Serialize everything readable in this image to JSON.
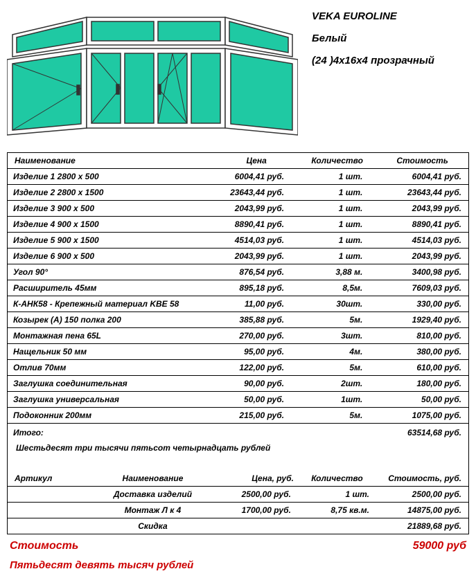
{
  "product": {
    "name": "VEKA EUROLINE",
    "color": "Белый",
    "glazing": "(24 )4x16x4 прозрачный"
  },
  "diagram": {
    "glass_color": "#1fc9a3",
    "frame_color": "#888888",
    "stroke": "#333333",
    "hinge_color": "#333333"
  },
  "main_table": {
    "headers": {
      "name": "Наименование",
      "price": "Цена",
      "qty": "Количество",
      "cost": "Стоимость"
    },
    "rows": [
      {
        "name": "Изделие 1   2800 x 500",
        "price": "6004,41  руб.",
        "qty": "1 шт.",
        "cost": "6004,41  руб."
      },
      {
        "name": "Изделие 2   2800 x 1500",
        "price": "23643,44  руб.",
        "qty": "1 шт.",
        "cost": "23643,44  руб."
      },
      {
        "name": "Изделие 3   900 x 500",
        "price": "2043,99  руб.",
        "qty": "1 шт.",
        "cost": "2043,99  руб."
      },
      {
        "name": "Изделие 4   900 x 1500",
        "price": "8890,41  руб.",
        "qty": "1 шт.",
        "cost": "8890,41  руб."
      },
      {
        "name": "Изделие 5   900 x 1500",
        "price": "4514,03  руб.",
        "qty": "1 шт.",
        "cost": "4514,03  руб."
      },
      {
        "name": "Изделие 6   900 x 500",
        "price": "2043,99  руб.",
        "qty": "1 шт.",
        "cost": "2043,99  руб."
      },
      {
        "name": " Угол 90°",
        "price": "876,54  руб.",
        "qty": "3,88 м.",
        "cost": "3400,98  руб."
      },
      {
        "name": "Расширитель 45мм",
        "price": "895,18  руб.",
        "qty": "8,5м.",
        "cost": "7609,03  руб."
      },
      {
        "name": "К-АНК58 - Крепежный материал KBE 58",
        "price": "11,00  руб.",
        "qty": "30шт.",
        "cost": "330,00  руб."
      },
      {
        "name": " Козырек (А) 150 полка 200",
        "price": "385,88  руб.",
        "qty": "5м.",
        "cost": "1929,40  руб."
      },
      {
        "name": "Монтажная пена 65L",
        "price": "270,00  руб.",
        "qty": "3шт.",
        "cost": "810,00  руб."
      },
      {
        "name": "Нащельник 50 мм",
        "price": "95,00  руб.",
        "qty": "4м.",
        "cost": "380,00  руб."
      },
      {
        "name": "Отлив 70мм",
        "price": "122,00  руб.",
        "qty": "5м.",
        "cost": "610,00  руб."
      },
      {
        "name": "Заглушка соединительная",
        "price": "90,00  руб.",
        "qty": "2шт.",
        "cost": "180,00  руб."
      },
      {
        "name": "Заглушка универсальная",
        "price": "50,00  руб.",
        "qty": "1шт.",
        "cost": "50,00  руб."
      },
      {
        "name": "Подоконник 200мм",
        "price": "215,00  руб.",
        "qty": "5м.",
        "cost": "1075,00  руб."
      }
    ],
    "subtotal_label": "Итого:",
    "subtotal_value": "63514,68  руб.",
    "subtotal_words": "Шестьдесят три тысячи пятьсот четырнадцать рублей"
  },
  "services_table": {
    "headers": {
      "art": "Артикул",
      "name": "Наименование",
      "price": "Цена,  руб.",
      "qty": "Количество",
      "cost": "Стоимость,  руб."
    },
    "rows": [
      {
        "art": "",
        "name": "Доставка изделий",
        "price": "2500,00  руб.",
        "qty": "1 шт.",
        "cost": "2500,00  руб."
      },
      {
        "art": "",
        "name": "Монтаж Л к 4",
        "price": "1700,00  руб.",
        "qty": "8,75 кв.м.",
        "cost": "14875,00  руб."
      },
      {
        "art": "",
        "name": "Скидка",
        "price": "",
        "qty": "",
        "cost": "21889,68  руб."
      }
    ]
  },
  "total": {
    "label": "Стоимость",
    "value": "59000  руб",
    "words": "Пятьдесят девять тысяч рублей"
  }
}
